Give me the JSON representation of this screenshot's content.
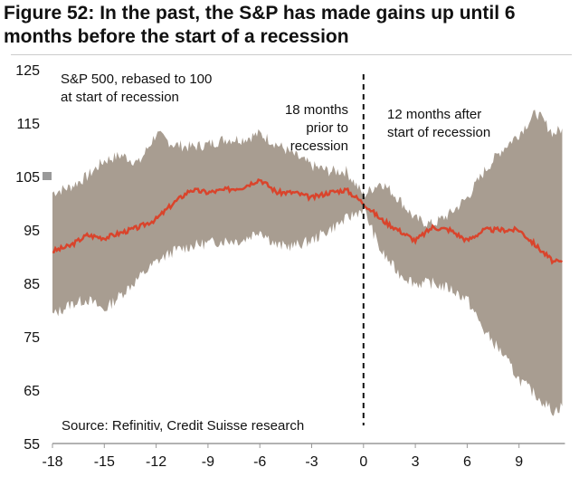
{
  "chart_data": {
    "type": "area",
    "title": "Figure 52: In the past, the S&P has made gains up until 6 months before the start of a recession",
    "subtitle": [
      "S&P 500, rebased to 100",
      "at start of recession"
    ],
    "annotations": {
      "left": [
        "18 months",
        "prior to",
        "recession"
      ],
      "right": [
        "12 months after",
        "start of recession"
      ]
    },
    "source": "Source: Refinitiv, Credit Suisse research",
    "xlabel": "",
    "ylabel": "",
    "xlim": [
      -18,
      11.5
    ],
    "ylim": [
      55,
      125
    ],
    "x_ticks": [
      "-18",
      "-15",
      "-12",
      "-9",
      "-6",
      "-3",
      "0",
      "3",
      "6",
      "9"
    ],
    "y_ticks": [
      "125",
      "115",
      "105",
      "95",
      "85",
      "75",
      "65",
      "55"
    ],
    "grid": false,
    "x": [
      -18,
      -17,
      -16,
      -15,
      -14,
      -13,
      -12,
      -11,
      -10,
      -9,
      -8,
      -7,
      -6,
      -5,
      -4,
      -3,
      -2,
      -1,
      0,
      1,
      2,
      3,
      4,
      5,
      6,
      7,
      8,
      9,
      10,
      11,
      11.5
    ],
    "series": [
      {
        "role": "mean",
        "color": "#d9442c",
        "values": [
          91,
          92,
          94,
          93.5,
          94.5,
          95.5,
          97,
          100,
          102.5,
          102,
          102.5,
          103,
          104.5,
          102,
          102,
          101,
          102,
          102.5,
          100,
          97,
          95,
          93,
          95.5,
          95,
          93,
          95,
          95,
          95,
          92,
          89,
          89
        ]
      },
      {
        "role": "range-upper",
        "color": "#a89d91",
        "values": [
          102,
          103,
          105,
          108,
          109,
          107.5,
          113,
          111,
          110.5,
          111,
          112,
          112,
          113,
          111,
          109,
          107,
          106,
          106,
          101.5,
          104,
          101,
          97,
          96,
          98,
          101,
          106,
          110,
          113,
          117,
          113,
          114
        ]
      },
      {
        "role": "range-lower",
        "color": "#a89d91",
        "values": [
          79,
          81,
          82,
          80,
          83,
          86,
          89,
          91,
          92,
          92.5,
          93,
          93,
          95,
          92,
          92,
          93,
          95,
          97,
          99,
          91,
          87,
          85,
          85,
          84,
          82,
          76,
          72,
          67,
          64,
          61,
          62
        ]
      }
    ],
    "reference_line": {
      "x": 0,
      "style": "dashed"
    }
  }
}
